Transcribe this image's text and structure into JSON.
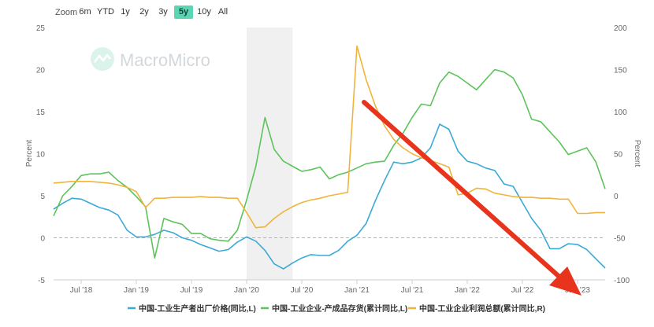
{
  "zoom": {
    "label": "Zoom",
    "buttons": [
      "6m",
      "YTD",
      "1y",
      "2y",
      "3y",
      "5y",
      "10y",
      "All"
    ],
    "active": "5y"
  },
  "watermark": "MacroMicro",
  "colors": {
    "accent": "#5bd6b4",
    "arrow": "#e8341c"
  },
  "chart_data": {
    "type": "line",
    "x_tick_labels": [
      "Jul '18",
      "Jan '19",
      "Jul '19",
      "Jan '20",
      "Jul '20",
      "Jan '21",
      "Jul '21",
      "Jan '22",
      "Jul '22",
      "Jan '23"
    ],
    "x_range": [
      "2018-04",
      "2023-04"
    ],
    "y_left": {
      "label": "Percent",
      "min": -5,
      "max": 25,
      "ticks": [
        -5,
        0,
        5,
        10,
        15,
        20,
        25
      ]
    },
    "y_right": {
      "label": "Percent",
      "min": -100,
      "max": 200,
      "ticks": [
        -100,
        -50,
        0,
        50,
        100,
        150,
        200
      ]
    },
    "shaded_region": [
      "2020-01",
      "2020-06"
    ],
    "grid": false,
    "legend_position": "bottom",
    "series": [
      {
        "name": "中国-工业生产者出厂价格(同比,L)",
        "color": "#3aa9d6",
        "axis": "left",
        "points": [
          [
            "2018-04",
            3.4
          ],
          [
            "2018-05",
            4.1
          ],
          [
            "2018-06",
            4.7
          ],
          [
            "2018-07",
            4.6
          ],
          [
            "2018-08",
            4.1
          ],
          [
            "2018-09",
            3.6
          ],
          [
            "2018-10",
            3.3
          ],
          [
            "2018-11",
            2.7
          ],
          [
            "2018-12",
            0.9
          ],
          [
            "2019-01",
            0.1
          ],
          [
            "2019-02",
            0.1
          ],
          [
            "2019-03",
            0.4
          ],
          [
            "2019-04",
            0.9
          ],
          [
            "2019-05",
            0.6
          ],
          [
            "2019-06",
            0.0
          ],
          [
            "2019-07",
            -0.3
          ],
          [
            "2019-08",
            -0.8
          ],
          [
            "2019-09",
            -1.2
          ],
          [
            "2019-10",
            -1.6
          ],
          [
            "2019-11",
            -1.4
          ],
          [
            "2019-12",
            -0.5
          ],
          [
            "2020-01",
            0.1
          ],
          [
            "2020-02",
            -0.4
          ],
          [
            "2020-03",
            -1.5
          ],
          [
            "2020-04",
            -3.1
          ],
          [
            "2020-05",
            -3.7
          ],
          [
            "2020-06",
            -3.0
          ],
          [
            "2020-07",
            -2.4
          ],
          [
            "2020-08",
            -2.0
          ],
          [
            "2020-09",
            -2.1
          ],
          [
            "2020-10",
            -2.1
          ],
          [
            "2020-11",
            -1.5
          ],
          [
            "2020-12",
            -0.4
          ],
          [
            "2021-01",
            0.3
          ],
          [
            "2021-02",
            1.7
          ],
          [
            "2021-03",
            4.4
          ],
          [
            "2021-04",
            6.8
          ],
          [
            "2021-05",
            9.0
          ],
          [
            "2021-06",
            8.8
          ],
          [
            "2021-07",
            9.0
          ],
          [
            "2021-08",
            9.5
          ],
          [
            "2021-09",
            10.7
          ],
          [
            "2021-10",
            13.5
          ],
          [
            "2021-11",
            12.9
          ],
          [
            "2021-12",
            10.3
          ],
          [
            "2022-01",
            9.1
          ],
          [
            "2022-02",
            8.8
          ],
          [
            "2022-03",
            8.3
          ],
          [
            "2022-04",
            8.0
          ],
          [
            "2022-05",
            6.4
          ],
          [
            "2022-06",
            6.1
          ],
          [
            "2022-07",
            4.2
          ],
          [
            "2022-08",
            2.3
          ],
          [
            "2022-09",
            0.9
          ],
          [
            "2022-10",
            -1.3
          ],
          [
            "2022-11",
            -1.3
          ],
          [
            "2022-12",
            -0.7
          ],
          [
            "2023-01",
            -0.8
          ],
          [
            "2023-02",
            -1.4
          ],
          [
            "2023-03",
            -2.5
          ],
          [
            "2023-04",
            -3.6
          ]
        ]
      },
      {
        "name": "中国-工业企业-产成品存货(累计同比,L)",
        "color": "#5cc45a",
        "axis": "left",
        "points": [
          [
            "2018-04",
            2.6
          ],
          [
            "2018-05",
            5.0
          ],
          [
            "2018-06",
            6.1
          ],
          [
            "2018-07",
            7.4
          ],
          [
            "2018-08",
            7.6
          ],
          [
            "2018-09",
            7.6
          ],
          [
            "2018-10",
            7.8
          ],
          [
            "2018-11",
            6.8
          ],
          [
            "2018-12",
            6.0
          ],
          [
            "2019-01",
            4.9
          ],
          [
            "2019-02",
            3.7
          ],
          [
            "2019-03",
            -2.4
          ],
          [
            "2019-04",
            2.3
          ],
          [
            "2019-05",
            1.9
          ],
          [
            "2019-06",
            1.6
          ],
          [
            "2019-07",
            0.5
          ],
          [
            "2019-08",
            0.5
          ],
          [
            "2019-09",
            -0.1
          ],
          [
            "2019-10",
            -0.3
          ],
          [
            "2019-11",
            -0.4
          ],
          [
            "2019-12",
            0.9
          ],
          [
            "2020-01",
            4.5
          ],
          [
            "2020-02",
            8.5
          ],
          [
            "2020-03",
            14.3
          ],
          [
            "2020-04",
            10.5
          ],
          [
            "2020-05",
            9.1
          ],
          [
            "2020-06",
            8.5
          ],
          [
            "2020-07",
            7.9
          ],
          [
            "2020-08",
            8.1
          ],
          [
            "2020-09",
            8.4
          ],
          [
            "2020-10",
            7.0
          ],
          [
            "2020-11",
            7.5
          ],
          [
            "2020-12",
            7.8
          ],
          [
            "2021-01",
            8.3
          ],
          [
            "2021-02",
            8.8
          ],
          [
            "2021-03",
            9.0
          ],
          [
            "2021-04",
            9.1
          ],
          [
            "2021-05",
            11.0
          ],
          [
            "2021-06",
            12.4
          ],
          [
            "2021-07",
            14.3
          ],
          [
            "2021-08",
            15.9
          ],
          [
            "2021-09",
            15.7
          ],
          [
            "2021-10",
            18.4
          ],
          [
            "2021-11",
            19.7
          ],
          [
            "2021-12",
            19.2
          ],
          [
            "2022-01",
            18.4
          ],
          [
            "2022-02",
            17.6
          ],
          [
            "2022-03",
            18.8
          ],
          [
            "2022-04",
            20.0
          ],
          [
            "2022-05",
            19.7
          ],
          [
            "2022-06",
            19.0
          ],
          [
            "2022-07",
            17.0
          ],
          [
            "2022-08",
            14.1
          ],
          [
            "2022-09",
            13.8
          ],
          [
            "2022-10",
            12.6
          ],
          [
            "2022-11",
            11.4
          ],
          [
            "2022-12",
            9.9
          ],
          [
            "2023-01",
            10.3
          ],
          [
            "2023-02",
            10.7
          ],
          [
            "2023-03",
            9.0
          ],
          [
            "2023-04",
            5.8
          ]
        ]
      },
      {
        "name": "中国-工业企业利润总额(累计同比,R)",
        "color": "#f0b43c",
        "axis": "right",
        "points": [
          [
            "2018-04",
            15
          ],
          [
            "2018-05",
            16
          ],
          [
            "2018-06",
            17
          ],
          [
            "2018-07",
            17
          ],
          [
            "2018-08",
            17
          ],
          [
            "2018-09",
            16
          ],
          [
            "2018-10",
            15
          ],
          [
            "2018-11",
            13
          ],
          [
            "2018-12",
            10
          ],
          [
            "2019-01",
            5
          ],
          [
            "2019-02",
            -14
          ],
          [
            "2019-03",
            -3
          ],
          [
            "2019-04",
            -3
          ],
          [
            "2019-05",
            -2
          ],
          [
            "2019-06",
            -2
          ],
          [
            "2019-07",
            -2
          ],
          [
            "2019-08",
            -1
          ],
          [
            "2019-09",
            -2
          ],
          [
            "2019-10",
            -2
          ],
          [
            "2019-11",
            -3
          ],
          [
            "2019-12",
            -3
          ],
          [
            "2020-01",
            -20
          ],
          [
            "2020-02",
            -38
          ],
          [
            "2020-03",
            -37
          ],
          [
            "2020-04",
            -27
          ],
          [
            "2020-05",
            -19
          ],
          [
            "2020-06",
            -13
          ],
          [
            "2020-07",
            -8
          ],
          [
            "2020-08",
            -5
          ],
          [
            "2020-09",
            -3
          ],
          [
            "2020-10",
            0
          ],
          [
            "2020-11",
            2
          ],
          [
            "2020-12",
            4
          ],
          [
            "2021-01",
            178
          ],
          [
            "2021-02",
            138
          ],
          [
            "2021-03",
            107
          ],
          [
            "2021-04",
            83
          ],
          [
            "2021-05",
            67
          ],
          [
            "2021-06",
            57
          ],
          [
            "2021-07",
            50
          ],
          [
            "2021-08",
            45
          ],
          [
            "2021-09",
            42
          ],
          [
            "2021-10",
            38
          ],
          [
            "2021-11",
            34
          ],
          [
            "2021-12",
            1
          ],
          [
            "2022-01",
            3
          ],
          [
            "2022-02",
            9
          ],
          [
            "2022-03",
            8
          ],
          [
            "2022-04",
            3
          ],
          [
            "2022-05",
            1
          ],
          [
            "2022-06",
            -1
          ],
          [
            "2022-07",
            -2
          ],
          [
            "2022-08",
            -2
          ],
          [
            "2022-09",
            -3
          ],
          [
            "2022-10",
            -3
          ],
          [
            "2022-11",
            -4
          ],
          [
            "2022-12",
            -4
          ],
          [
            "2023-01",
            -21
          ],
          [
            "2023-02",
            -21
          ],
          [
            "2023-03",
            -20
          ],
          [
            "2023-04",
            -20
          ]
        ]
      }
    ]
  }
}
